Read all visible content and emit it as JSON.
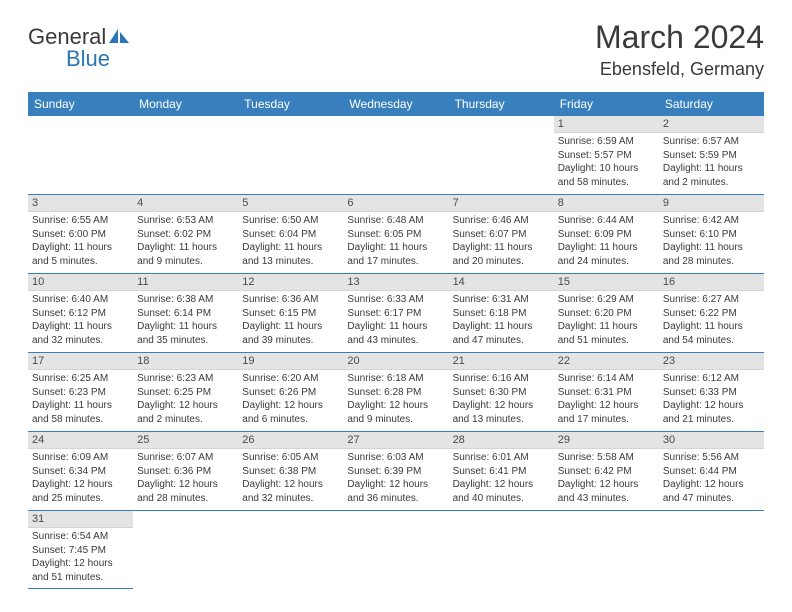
{
  "logo": {
    "general": "General",
    "blue": "Blue"
  },
  "title": "March 2024",
  "location": "Ebensfeld, Germany",
  "colors": {
    "header_bg": "#3880bd",
    "header_text": "#ffffff",
    "daynum_bg": "#e4e4e4",
    "text": "#3a3a3a",
    "border": "#3880bd"
  },
  "weekdays": [
    "Sunday",
    "Monday",
    "Tuesday",
    "Wednesday",
    "Thursday",
    "Friday",
    "Saturday"
  ],
  "weeks": [
    [
      null,
      null,
      null,
      null,
      null,
      {
        "n": "1",
        "sunrise": "Sunrise: 6:59 AM",
        "sunset": "Sunset: 5:57 PM",
        "day1": "Daylight: 10 hours",
        "day2": "and 58 minutes."
      },
      {
        "n": "2",
        "sunrise": "Sunrise: 6:57 AM",
        "sunset": "Sunset: 5:59 PM",
        "day1": "Daylight: 11 hours",
        "day2": "and 2 minutes."
      }
    ],
    [
      {
        "n": "3",
        "sunrise": "Sunrise: 6:55 AM",
        "sunset": "Sunset: 6:00 PM",
        "day1": "Daylight: 11 hours",
        "day2": "and 5 minutes."
      },
      {
        "n": "4",
        "sunrise": "Sunrise: 6:53 AM",
        "sunset": "Sunset: 6:02 PM",
        "day1": "Daylight: 11 hours",
        "day2": "and 9 minutes."
      },
      {
        "n": "5",
        "sunrise": "Sunrise: 6:50 AM",
        "sunset": "Sunset: 6:04 PM",
        "day1": "Daylight: 11 hours",
        "day2": "and 13 minutes."
      },
      {
        "n": "6",
        "sunrise": "Sunrise: 6:48 AM",
        "sunset": "Sunset: 6:05 PM",
        "day1": "Daylight: 11 hours",
        "day2": "and 17 minutes."
      },
      {
        "n": "7",
        "sunrise": "Sunrise: 6:46 AM",
        "sunset": "Sunset: 6:07 PM",
        "day1": "Daylight: 11 hours",
        "day2": "and 20 minutes."
      },
      {
        "n": "8",
        "sunrise": "Sunrise: 6:44 AM",
        "sunset": "Sunset: 6:09 PM",
        "day1": "Daylight: 11 hours",
        "day2": "and 24 minutes."
      },
      {
        "n": "9",
        "sunrise": "Sunrise: 6:42 AM",
        "sunset": "Sunset: 6:10 PM",
        "day1": "Daylight: 11 hours",
        "day2": "and 28 minutes."
      }
    ],
    [
      {
        "n": "10",
        "sunrise": "Sunrise: 6:40 AM",
        "sunset": "Sunset: 6:12 PM",
        "day1": "Daylight: 11 hours",
        "day2": "and 32 minutes."
      },
      {
        "n": "11",
        "sunrise": "Sunrise: 6:38 AM",
        "sunset": "Sunset: 6:14 PM",
        "day1": "Daylight: 11 hours",
        "day2": "and 35 minutes."
      },
      {
        "n": "12",
        "sunrise": "Sunrise: 6:36 AM",
        "sunset": "Sunset: 6:15 PM",
        "day1": "Daylight: 11 hours",
        "day2": "and 39 minutes."
      },
      {
        "n": "13",
        "sunrise": "Sunrise: 6:33 AM",
        "sunset": "Sunset: 6:17 PM",
        "day1": "Daylight: 11 hours",
        "day2": "and 43 minutes."
      },
      {
        "n": "14",
        "sunrise": "Sunrise: 6:31 AM",
        "sunset": "Sunset: 6:18 PM",
        "day1": "Daylight: 11 hours",
        "day2": "and 47 minutes."
      },
      {
        "n": "15",
        "sunrise": "Sunrise: 6:29 AM",
        "sunset": "Sunset: 6:20 PM",
        "day1": "Daylight: 11 hours",
        "day2": "and 51 minutes."
      },
      {
        "n": "16",
        "sunrise": "Sunrise: 6:27 AM",
        "sunset": "Sunset: 6:22 PM",
        "day1": "Daylight: 11 hours",
        "day2": "and 54 minutes."
      }
    ],
    [
      {
        "n": "17",
        "sunrise": "Sunrise: 6:25 AM",
        "sunset": "Sunset: 6:23 PM",
        "day1": "Daylight: 11 hours",
        "day2": "and 58 minutes."
      },
      {
        "n": "18",
        "sunrise": "Sunrise: 6:23 AM",
        "sunset": "Sunset: 6:25 PM",
        "day1": "Daylight: 12 hours",
        "day2": "and 2 minutes."
      },
      {
        "n": "19",
        "sunrise": "Sunrise: 6:20 AM",
        "sunset": "Sunset: 6:26 PM",
        "day1": "Daylight: 12 hours",
        "day2": "and 6 minutes."
      },
      {
        "n": "20",
        "sunrise": "Sunrise: 6:18 AM",
        "sunset": "Sunset: 6:28 PM",
        "day1": "Daylight: 12 hours",
        "day2": "and 9 minutes."
      },
      {
        "n": "21",
        "sunrise": "Sunrise: 6:16 AM",
        "sunset": "Sunset: 6:30 PM",
        "day1": "Daylight: 12 hours",
        "day2": "and 13 minutes."
      },
      {
        "n": "22",
        "sunrise": "Sunrise: 6:14 AM",
        "sunset": "Sunset: 6:31 PM",
        "day1": "Daylight: 12 hours",
        "day2": "and 17 minutes."
      },
      {
        "n": "23",
        "sunrise": "Sunrise: 6:12 AM",
        "sunset": "Sunset: 6:33 PM",
        "day1": "Daylight: 12 hours",
        "day2": "and 21 minutes."
      }
    ],
    [
      {
        "n": "24",
        "sunrise": "Sunrise: 6:09 AM",
        "sunset": "Sunset: 6:34 PM",
        "day1": "Daylight: 12 hours",
        "day2": "and 25 minutes."
      },
      {
        "n": "25",
        "sunrise": "Sunrise: 6:07 AM",
        "sunset": "Sunset: 6:36 PM",
        "day1": "Daylight: 12 hours",
        "day2": "and 28 minutes."
      },
      {
        "n": "26",
        "sunrise": "Sunrise: 6:05 AM",
        "sunset": "Sunset: 6:38 PM",
        "day1": "Daylight: 12 hours",
        "day2": "and 32 minutes."
      },
      {
        "n": "27",
        "sunrise": "Sunrise: 6:03 AM",
        "sunset": "Sunset: 6:39 PM",
        "day1": "Daylight: 12 hours",
        "day2": "and 36 minutes."
      },
      {
        "n": "28",
        "sunrise": "Sunrise: 6:01 AM",
        "sunset": "Sunset: 6:41 PM",
        "day1": "Daylight: 12 hours",
        "day2": "and 40 minutes."
      },
      {
        "n": "29",
        "sunrise": "Sunrise: 5:58 AM",
        "sunset": "Sunset: 6:42 PM",
        "day1": "Daylight: 12 hours",
        "day2": "and 43 minutes."
      },
      {
        "n": "30",
        "sunrise": "Sunrise: 5:56 AM",
        "sunset": "Sunset: 6:44 PM",
        "day1": "Daylight: 12 hours",
        "day2": "and 47 minutes."
      }
    ],
    [
      {
        "n": "31",
        "sunrise": "Sunrise: 6:54 AM",
        "sunset": "Sunset: 7:45 PM",
        "day1": "Daylight: 12 hours",
        "day2": "and 51 minutes."
      },
      null,
      null,
      null,
      null,
      null,
      null
    ]
  ]
}
